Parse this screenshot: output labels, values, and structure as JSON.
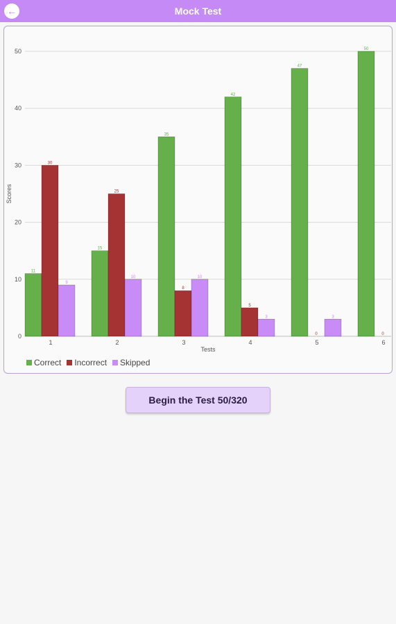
{
  "appbar": {
    "title": "Mock Test",
    "back_icon": "back-arrow-icon",
    "colors": {
      "background": "#c58af5",
      "text": "#ffffff"
    }
  },
  "chart_data": {
    "type": "bar",
    "categories": [
      "1",
      "2",
      "3",
      "4",
      "5",
      "6"
    ],
    "series": [
      {
        "name": "Correct",
        "color": "#65b04a",
        "values": [
          11,
          15,
          35,
          42,
          47,
          50
        ]
      },
      {
        "name": "Incorrect",
        "color": "#a63333",
        "values": [
          30,
          25,
          8,
          5,
          0,
          0
        ]
      },
      {
        "name": "Skipped",
        "color": "#c98cf7",
        "values": [
          9,
          10,
          10,
          3,
          3,
          null
        ]
      }
    ],
    "xlabel": "Tests",
    "ylabel": "Scores",
    "ylim": [
      0,
      50
    ],
    "yticks": [
      "0",
      "10",
      "20",
      "30",
      "40",
      "50"
    ],
    "grid": true,
    "legend_position": "bottom-left"
  },
  "action": {
    "begin_label": "Begin the Test 50/320"
  }
}
